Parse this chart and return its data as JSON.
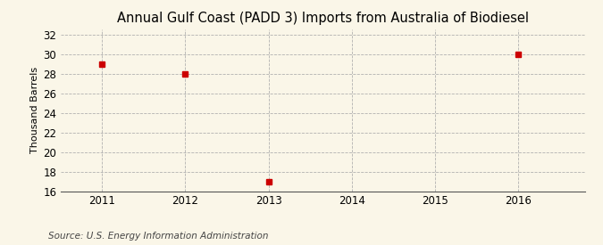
{
  "title": "Annual Gulf Coast (PADD 3) Imports from Australia of Biodiesel",
  "ylabel": "Thousand Barrels",
  "source": "Source: U.S. Energy Information Administration",
  "x_values": [
    2011,
    2012,
    2013,
    2016
  ],
  "y_values": [
    29,
    28,
    17,
    30
  ],
  "marker_color": "#cc0000",
  "marker_size": 4,
  "xlim": [
    2010.5,
    2016.8
  ],
  "ylim": [
    16,
    32.5
  ],
  "yticks": [
    16,
    18,
    20,
    22,
    24,
    26,
    28,
    30,
    32
  ],
  "xticks": [
    2011,
    2012,
    2013,
    2014,
    2015,
    2016
  ],
  "background_color": "#faf6e8",
  "plot_bg_color": "#faf6e8",
  "grid_color": "#aaaaaa",
  "title_fontsize": 10.5,
  "label_fontsize": 8,
  "tick_fontsize": 8.5,
  "source_fontsize": 7.5
}
